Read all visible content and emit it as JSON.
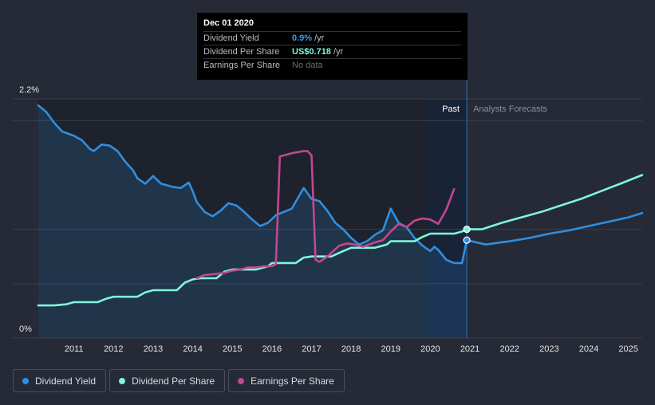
{
  "chart_data": {
    "type": "line",
    "y_axis": {
      "top_label": "2.2%",
      "bottom_label": "0%",
      "ylim": [
        0,
        2.2
      ]
    },
    "x_ticks": [
      "2011",
      "2012",
      "2013",
      "2014",
      "2015",
      "2016",
      "2017",
      "2018",
      "2019",
      "2020",
      "2021",
      "2022",
      "2023",
      "2024",
      "2025"
    ],
    "xlim": [
      2010.1,
      2025.35
    ],
    "past_label": "Past",
    "forecast_label": "Analysts Forecasts",
    "divider_x": 2020.92,
    "tooltip": {
      "date": "Dec 01 2020",
      "rows": [
        {
          "label": "Dividend Yield",
          "value": "0.9%",
          "unit": "/yr"
        },
        {
          "label": "Dividend Per Share",
          "value": "US$0.718",
          "unit": "/yr"
        },
        {
          "label": "Earnings Per Share",
          "value": "No data",
          "unit": ""
        }
      ]
    },
    "series": [
      {
        "name": "Dividend Yield",
        "color": "#2f8fe0",
        "x": [
          2010.1,
          2010.3,
          2010.5,
          2010.7,
          2011.0,
          2011.2,
          2011.4,
          2011.5,
          2011.7,
          2011.9,
          2012.1,
          2012.3,
          2012.5,
          2012.6,
          2012.8,
          2013.0,
          2013.2,
          2013.5,
          2013.7,
          2013.9,
          2014.0,
          2014.1,
          2014.3,
          2014.5,
          2014.7,
          2014.9,
          2015.1,
          2015.3,
          2015.5,
          2015.7,
          2015.9,
          2016.1,
          2016.3,
          2016.5,
          2016.8,
          2017.0,
          2017.2,
          2017.4,
          2017.6,
          2017.8,
          2018.0,
          2018.2,
          2018.4,
          2018.6,
          2018.8,
          2018.9,
          2019.0,
          2019.2,
          2019.4,
          2019.6,
          2019.8,
          2020.0,
          2020.1,
          2020.2,
          2020.4,
          2020.6,
          2020.8,
          2020.92,
          2021.4,
          2022.0,
          2022.5,
          2023.0,
          2023.5,
          2024.0,
          2024.5,
          2025.0,
          2025.35
        ],
        "values": [
          2.14,
          2.08,
          1.98,
          1.9,
          1.86,
          1.82,
          1.74,
          1.72,
          1.78,
          1.77,
          1.72,
          1.62,
          1.54,
          1.47,
          1.42,
          1.49,
          1.42,
          1.39,
          1.38,
          1.43,
          1.35,
          1.25,
          1.16,
          1.12,
          1.17,
          1.24,
          1.22,
          1.16,
          1.09,
          1.03,
          1.06,
          1.13,
          1.16,
          1.19,
          1.38,
          1.28,
          1.26,
          1.17,
          1.06,
          1.0,
          0.92,
          0.86,
          0.89,
          0.95,
          0.99,
          1.09,
          1.19,
          1.06,
          1.02,
          0.92,
          0.85,
          0.8,
          0.84,
          0.81,
          0.72,
          0.69,
          0.69,
          0.9,
          0.86,
          0.89,
          0.92,
          0.96,
          0.99,
          1.03,
          1.07,
          1.11,
          1.15
        ],
        "forecast_from": 2020.92
      },
      {
        "name": "Dividend Per Share",
        "color": "#7ff5dc",
        "x": [
          2010.1,
          2010.5,
          2010.8,
          2011.0,
          2011.3,
          2011.6,
          2011.8,
          2012.0,
          2012.3,
          2012.6,
          2012.8,
          2013.0,
          2013.3,
          2013.6,
          2013.8,
          2014.0,
          2014.2,
          2014.4,
          2014.6,
          2014.8,
          2015.0,
          2015.3,
          2015.6,
          2015.9,
          2016.0,
          2016.3,
          2016.6,
          2016.8,
          2017.0,
          2017.2,
          2017.5,
          2017.8,
          2018.0,
          2018.4,
          2018.6,
          2018.9,
          2019.0,
          2019.3,
          2019.6,
          2019.8,
          2020.0,
          2020.2,
          2020.4,
          2020.6,
          2020.8,
          2020.92,
          2021.3,
          2021.8,
          2022.3,
          2022.8,
          2023.3,
          2023.8,
          2024.3,
          2024.8,
          2025.35
        ],
        "values": [
          0.3,
          0.3,
          0.31,
          0.33,
          0.33,
          0.33,
          0.36,
          0.38,
          0.38,
          0.38,
          0.42,
          0.44,
          0.44,
          0.44,
          0.51,
          0.54,
          0.55,
          0.55,
          0.55,
          0.61,
          0.63,
          0.63,
          0.63,
          0.66,
          0.69,
          0.69,
          0.69,
          0.74,
          0.75,
          0.75,
          0.75,
          0.8,
          0.83,
          0.83,
          0.83,
          0.86,
          0.89,
          0.89,
          0.89,
          0.93,
          0.96,
          0.96,
          0.96,
          0.96,
          0.98,
          1.0,
          1.0,
          1.06,
          1.11,
          1.16,
          1.22,
          1.28,
          1.35,
          1.42,
          1.5
        ],
        "forecast_from": 2020.92
      },
      {
        "name": "Earnings Per Share",
        "color": "#c4478f",
        "x": [
          2014.1,
          2014.3,
          2014.6,
          2014.8,
          2015.0,
          2015.2,
          2015.4,
          2015.6,
          2015.8,
          2016.0,
          2016.1,
          2016.2,
          2016.3,
          2016.5,
          2016.8,
          2016.9,
          2017.0,
          2017.1,
          2017.2,
          2017.4,
          2017.7,
          2017.9,
          2018.1,
          2018.3,
          2018.6,
          2018.8,
          2019.0,
          2019.2,
          2019.4,
          2019.6,
          2019.8,
          2020.0,
          2020.2,
          2020.4,
          2020.6
        ],
        "values": [
          0.55,
          0.58,
          0.59,
          0.6,
          0.62,
          0.63,
          0.65,
          0.65,
          0.66,
          0.66,
          0.68,
          1.67,
          1.68,
          1.7,
          1.72,
          1.72,
          1.68,
          0.72,
          0.7,
          0.75,
          0.85,
          0.87,
          0.86,
          0.84,
          0.88,
          0.9,
          0.98,
          1.05,
          1.02,
          1.08,
          1.1,
          1.09,
          1.05,
          1.18,
          1.37
        ],
        "forecast_from": null
      }
    ]
  },
  "legend": [
    {
      "label": "Dividend Yield",
      "color": "#2f8fe0"
    },
    {
      "label": "Dividend Per Share",
      "color": "#7ff5dc"
    },
    {
      "label": "Earnings Per Share",
      "color": "#c4478f"
    }
  ]
}
